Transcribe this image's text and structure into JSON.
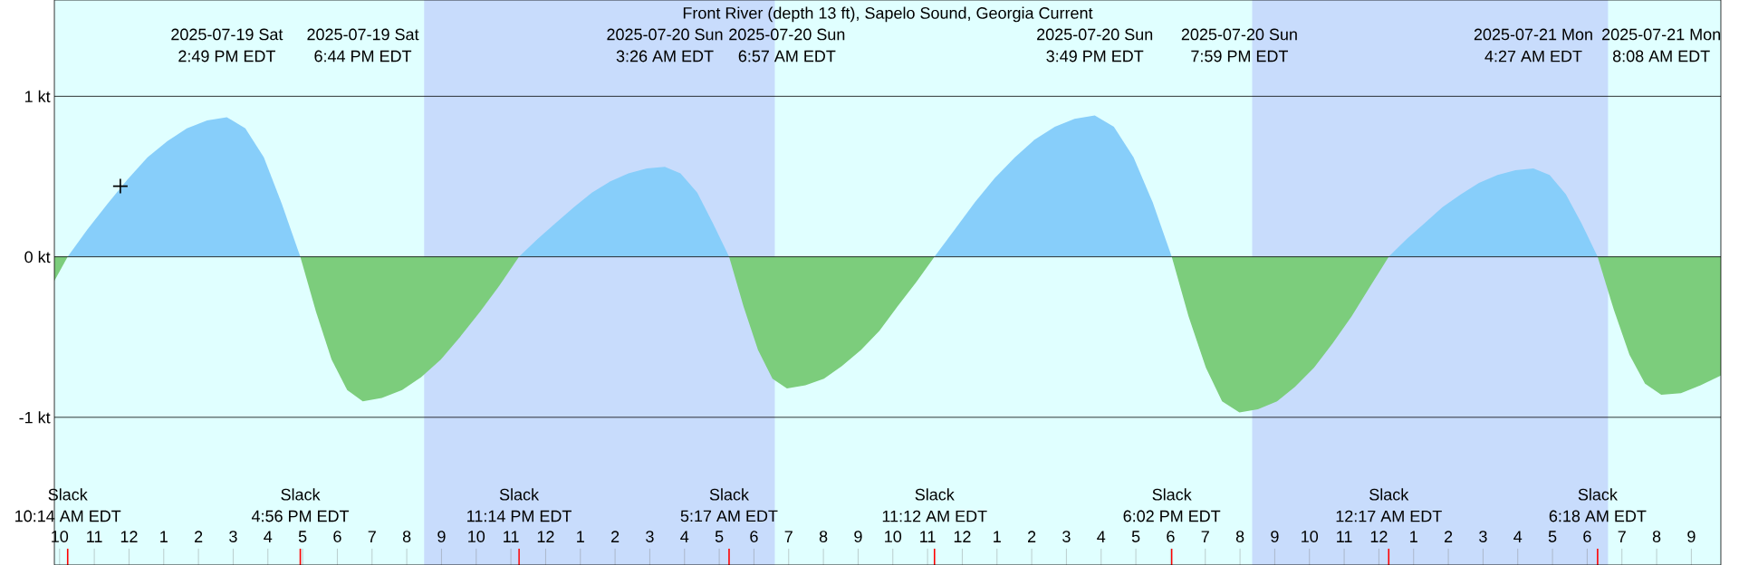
{
  "chart_data": {
    "type": "area",
    "title": "Front River (depth 13 ft), Sapelo Sound, Georgia Current",
    "xlim": [
      "2025-07-19T09:51",
      "2025-07-21T09:51"
    ],
    "ylim": [
      -1.92,
      1.6
    ],
    "grid": "y",
    "xticks": [
      {
        "value": "2025-07-19T10:00",
        "label": "10"
      },
      {
        "value": "2025-07-19T11:00",
        "label": "11"
      },
      {
        "value": "2025-07-19T12:00",
        "label": "12"
      },
      {
        "value": "2025-07-19T13:00",
        "label": "1"
      },
      {
        "value": "2025-07-19T14:00",
        "label": "2"
      },
      {
        "value": "2025-07-19T15:00",
        "label": "3"
      },
      {
        "value": "2025-07-19T16:00",
        "label": "4"
      },
      {
        "value": "2025-07-19T17:00",
        "label": "5"
      },
      {
        "value": "2025-07-19T18:00",
        "label": "6"
      },
      {
        "value": "2025-07-19T19:00",
        "label": "7"
      },
      {
        "value": "2025-07-19T20:00",
        "label": "8"
      },
      {
        "value": "2025-07-19T21:00",
        "label": "9"
      },
      {
        "value": "2025-07-19T22:00",
        "label": "10"
      },
      {
        "value": "2025-07-19T23:00",
        "label": "11"
      },
      {
        "value": "2025-07-20T00:00",
        "label": "12"
      },
      {
        "value": "2025-07-20T01:00",
        "label": "1"
      },
      {
        "value": "2025-07-20T02:00",
        "label": "2"
      },
      {
        "value": "2025-07-20T03:00",
        "label": "3"
      },
      {
        "value": "2025-07-20T04:00",
        "label": "4"
      },
      {
        "value": "2025-07-20T05:00",
        "label": "5"
      },
      {
        "value": "2025-07-20T06:00",
        "label": "6"
      },
      {
        "value": "2025-07-20T07:00",
        "label": "7"
      },
      {
        "value": "2025-07-20T08:00",
        "label": "8"
      },
      {
        "value": "2025-07-20T09:00",
        "label": "9"
      },
      {
        "value": "2025-07-20T10:00",
        "label": "10"
      },
      {
        "value": "2025-07-20T11:00",
        "label": "11"
      },
      {
        "value": "2025-07-20T12:00",
        "label": "12"
      },
      {
        "value": "2025-07-20T13:00",
        "label": "1"
      },
      {
        "value": "2025-07-20T14:00",
        "label": "2"
      },
      {
        "value": "2025-07-20T15:00",
        "label": "3"
      },
      {
        "value": "2025-07-20T16:00",
        "label": "4"
      },
      {
        "value": "2025-07-20T17:00",
        "label": "5"
      },
      {
        "value": "2025-07-20T18:00",
        "label": "6"
      },
      {
        "value": "2025-07-20T19:00",
        "label": "7"
      },
      {
        "value": "2025-07-20T20:00",
        "label": "8"
      },
      {
        "value": "2025-07-20T21:00",
        "label": "9"
      },
      {
        "value": "2025-07-20T22:00",
        "label": "10"
      },
      {
        "value": "2025-07-20T23:00",
        "label": "11"
      },
      {
        "value": "2025-07-21T00:00",
        "label": "12"
      },
      {
        "value": "2025-07-21T01:00",
        "label": "1"
      },
      {
        "value": "2025-07-21T02:00",
        "label": "2"
      },
      {
        "value": "2025-07-21T03:00",
        "label": "3"
      },
      {
        "value": "2025-07-21T04:00",
        "label": "4"
      },
      {
        "value": "2025-07-21T05:00",
        "label": "5"
      },
      {
        "value": "2025-07-21T06:00",
        "label": "6"
      },
      {
        "value": "2025-07-21T07:00",
        "label": "7"
      },
      {
        "value": "2025-07-21T08:00",
        "label": "8"
      },
      {
        "value": "2025-07-21T09:00",
        "label": "9"
      }
    ],
    "yticks": [
      {
        "value": 1,
        "label": "1 kt"
      },
      {
        "value": 0,
        "label": "0 kt"
      },
      {
        "value": -1,
        "label": "-1 kt"
      }
    ],
    "bands": [
      {
        "axis": "x",
        "from": "2025-07-19T20:30",
        "to": "2025-07-20T06:36",
        "color": "#c8dcfc"
      },
      {
        "axis": "x",
        "from": "2025-07-20T20:21",
        "to": "2025-07-21T06:36",
        "color": "#c8dcfc"
      }
    ],
    "series": [
      {
        "color": "#87cefa",
        "x": [
          "2025-07-19T10:14",
          "2025-07-19T10:48",
          "2025-07-19T11:23",
          "2025-07-19T11:57",
          "2025-07-19T12:32",
          "2025-07-19T13:06",
          "2025-07-19T13:40",
          "2025-07-19T14:15",
          "2025-07-19T14:49",
          "2025-07-19T15:21",
          "2025-07-19T15:53",
          "2025-07-19T16:24",
          "2025-07-19T16:56",
          "2025-07-19T20:00",
          "2025-07-19T23:14",
          "2025-07-19T23:46",
          "2025-07-20T00:17",
          "2025-07-20T00:49",
          "2025-07-20T01:20",
          "2025-07-20T01:52",
          "2025-07-20T02:23",
          "2025-07-20T02:55",
          "2025-07-20T03:26",
          "2025-07-20T03:53",
          "2025-07-20T04:22",
          "2025-07-20T04:49",
          "2025-07-20T05:17",
          "2025-07-20T08:00",
          "2025-07-20T11:12",
          "2025-07-20T11:47",
          "2025-07-20T12:22",
          "2025-07-20T12:56",
          "2025-07-20T13:31",
          "2025-07-20T14:05",
          "2025-07-20T14:40",
          "2025-07-20T15:14",
          "2025-07-20T15:49",
          "2025-07-20T16:22",
          "2025-07-20T16:56",
          "2025-07-20T17:29",
          "2025-07-20T18:02",
          "2025-07-20T21:00",
          "2025-07-21T00:17",
          "2025-07-21T00:48",
          "2025-07-21T01:19",
          "2025-07-21T01:50",
          "2025-07-21T02:22",
          "2025-07-21T02:53",
          "2025-07-21T03:25",
          "2025-07-21T03:56",
          "2025-07-21T04:27",
          "2025-07-21T04:55",
          "2025-07-21T05:23",
          "2025-07-21T05:50",
          "2025-07-21T06:18"
        ],
        "values": [
          0,
          0.17,
          0.33,
          0.48,
          0.62,
          0.72,
          0.8,
          0.85,
          0.87,
          0.8,
          0.62,
          0.33,
          0,
          null,
          0,
          0.11,
          0.21,
          0.31,
          0.4,
          0.47,
          0.52,
          0.55,
          0.56,
          0.52,
          0.4,
          0.21,
          0,
          null,
          0,
          0.17,
          0.34,
          0.49,
          0.62,
          0.73,
          0.81,
          0.86,
          0.88,
          0.81,
          0.62,
          0.34,
          0,
          null,
          0,
          0.11,
          0.21,
          0.31,
          0.39,
          0.46,
          0.51,
          0.54,
          0.55,
          0.51,
          0.39,
          0.21,
          0
        ]
      },
      {
        "color": "#7ccd7c",
        "x": [
          "2025-07-19T09:51",
          "2025-07-19T10:14",
          "2025-07-19T13:00",
          "2025-07-19T16:56",
          "2025-07-19T17:23",
          "2025-07-19T17:50",
          "2025-07-19T18:17",
          "2025-07-19T18:44",
          "2025-07-19T19:17",
          "2025-07-19T19:52",
          "2025-07-19T20:25",
          "2025-07-19T20:59",
          "2025-07-19T21:32",
          "2025-07-19T22:07",
          "2025-07-19T22:40",
          "2025-07-19T23:14",
          "2025-07-20T02:00",
          "2025-07-20T05:17",
          "2025-07-20T05:42",
          "2025-07-20T06:07",
          "2025-07-20T06:32",
          "2025-07-20T06:57",
          "2025-07-20T07:29",
          "2025-07-20T08:01",
          "2025-07-20T08:32",
          "2025-07-20T09:05",
          "2025-07-20T09:37",
          "2025-07-20T10:08",
          "2025-07-20T10:40",
          "2025-07-20T11:12",
          "2025-07-20T14:00",
          "2025-07-20T18:02",
          "2025-07-20T18:31",
          "2025-07-20T19:01",
          "2025-07-20T19:29",
          "2025-07-20T19:59",
          "2025-07-20T20:31",
          "2025-07-20T21:04",
          "2025-07-20T21:35",
          "2025-07-20T22:08",
          "2025-07-20T22:40",
          "2025-07-20T23:13",
          "2025-07-20T23:44",
          "2025-07-21T00:17",
          "2025-07-21T03:00",
          "2025-07-21T06:18",
          "2025-07-21T06:46",
          "2025-07-21T07:13",
          "2025-07-21T07:40",
          "2025-07-21T08:08",
          "2025-07-21T08:42",
          "2025-07-21T09:16",
          "2025-07-21T09:51"
        ],
        "values": [
          -0.15,
          0,
          null,
          0,
          -0.34,
          -0.64,
          -0.83,
          -0.9,
          -0.88,
          -0.83,
          -0.75,
          -0.64,
          -0.5,
          -0.34,
          -0.18,
          0,
          null,
          0,
          -0.31,
          -0.58,
          -0.76,
          -0.82,
          -0.8,
          -0.76,
          -0.68,
          -0.58,
          -0.46,
          -0.31,
          -0.16,
          0,
          null,
          0,
          -0.37,
          -0.69,
          -0.9,
          -0.97,
          -0.95,
          -0.9,
          -0.81,
          -0.69,
          -0.54,
          -0.37,
          -0.19,
          0,
          null,
          0,
          -0.33,
          -0.61,
          -0.79,
          -0.86,
          -0.85,
          -0.8,
          -0.74
        ]
      },
      {
        "type": "scatter",
        "marker": "cross",
        "color": "#000000",
        "x": [
          "2025-07-19T11:45"
        ],
        "values": [
          0.44
        ]
      }
    ],
    "annotations": [
      "2025-07-19 Sat",
      "2:49 PM EDT",
      "2025-07-19 Sat",
      "6:44 PM EDT",
      "2025-07-20 Sun",
      "3:26 AM EDT",
      "2025-07-20 Sun",
      "6:57 AM EDT",
      "2025-07-20 Sun",
      "3:49 PM EDT",
      "2025-07-20 Sun",
      "7:59 PM EDT",
      "2025-07-21 Mon",
      "4:27 AM EDT",
      "2025-07-21 Mon",
      "8:08 AM EDT",
      "Slack",
      "10:14 AM EDT",
      "Slack",
      "4:56 PM EDT",
      "Slack",
      "11:14 PM EDT",
      "Slack",
      "5:17 AM EDT",
      "Slack",
      "11:12 AM EDT",
      "Slack",
      "6:02 PM EDT",
      "Slack",
      "12:17 AM EDT",
      "Slack",
      "6:18 AM EDT"
    ]
  }
}
